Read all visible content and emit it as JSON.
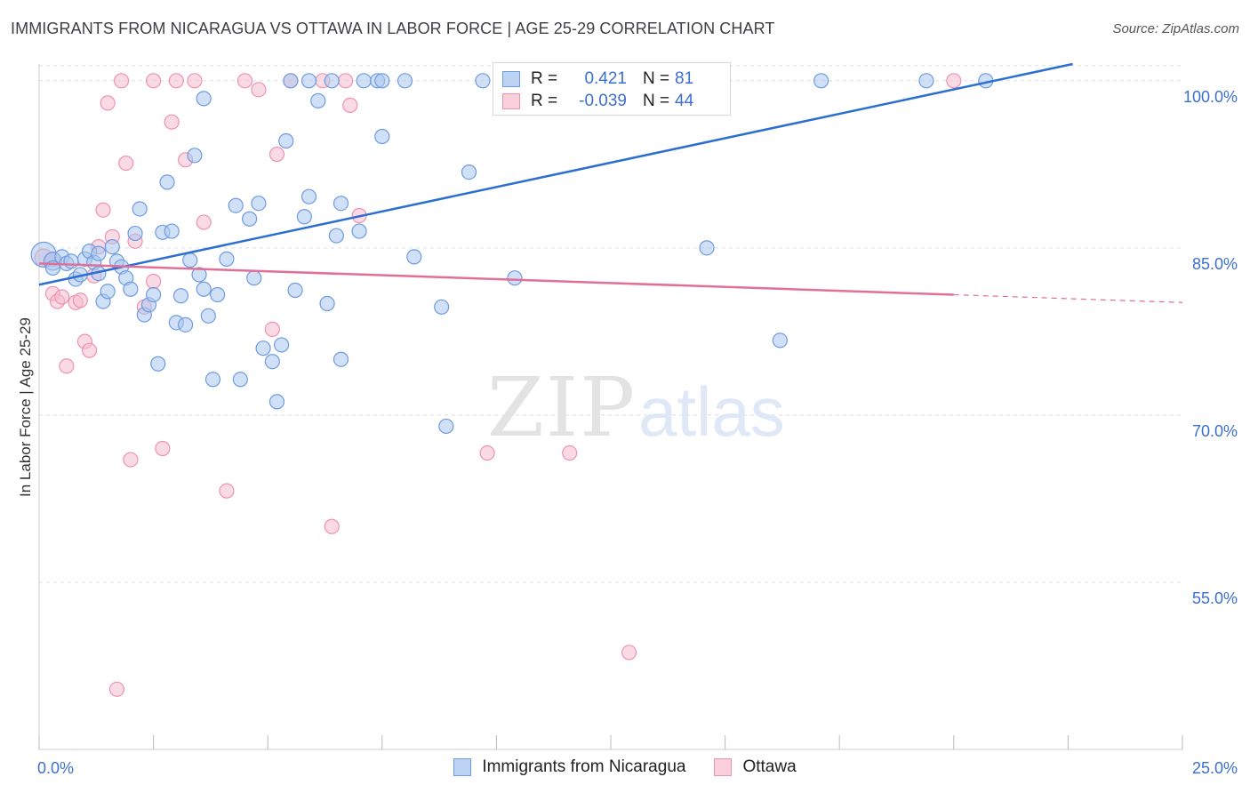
{
  "title": "IMMIGRANTS FROM NICARAGUA VS OTTAWA IN LABOR FORCE | AGE 25-29 CORRELATION CHART",
  "source": "Source: ZipAtlas.com",
  "watermark": {
    "zip": "ZIP",
    "atlas": "atlas"
  },
  "colors": {
    "blue_fill": "#a9c6ef",
    "blue_stroke": "#6f9be0",
    "blue_line": "#2d6fd0",
    "pink_fill": "#f6bccd",
    "pink_stroke": "#ee93ae",
    "pink_line": "#e0709a",
    "axis_label": "#3b6fd0",
    "grid": "#dddddd"
  },
  "legend": {
    "blue": {
      "r_label": "R =",
      "r_value": "0.421",
      "n_label": "N =",
      "n_value": "81"
    },
    "pink": {
      "r_label": "R =",
      "r_value": "-0.039",
      "n_label": "N =",
      "n_value": "44"
    }
  },
  "series_names": {
    "blue": "Immigrants from Nicaragua",
    "pink": "Ottawa"
  },
  "chart_data": {
    "type": "scatter",
    "title": "IMMIGRANTS FROM NICARAGUA VS OTTAWA IN LABOR FORCE | AGE 25-29 CORRELATION CHART",
    "xlabel": "",
    "ylabel": "In Labor Force | Age 25-29",
    "xlim": [
      0,
      25
    ],
    "ylim": [
      40,
      101.5
    ],
    "x_tick_labels": [
      {
        "value": 0,
        "label": "0.0%"
      },
      {
        "value": 25,
        "label": "25.0%"
      }
    ],
    "y_tick_labels": [
      {
        "value": 100,
        "label": "100.0%"
      },
      {
        "value": 85,
        "label": "85.0%"
      },
      {
        "value": 70,
        "label": "70.0%"
      },
      {
        "value": 55,
        "label": "55.0%"
      }
    ],
    "legend_position": "top-center",
    "grid": true,
    "series": [
      {
        "name": "Immigrants from Nicaragua",
        "color": "#6f9be0",
        "trend": {
          "x": [
            0,
            22.6
          ],
          "y": [
            81.7,
            101.5
          ]
        },
        "points": [
          [
            0.1,
            84.4,
            14
          ],
          [
            0.3,
            83.8,
            10
          ],
          [
            0.3,
            83.2,
            8
          ],
          [
            0.5,
            84.2,
            8
          ],
          [
            0.6,
            83.6,
            8
          ],
          [
            0.7,
            83.8,
            8
          ],
          [
            0.8,
            82.2,
            8
          ],
          [
            0.9,
            82.6,
            8
          ],
          [
            1.0,
            84.0,
            8
          ],
          [
            1.1,
            84.7,
            8
          ],
          [
            1.2,
            83.7,
            8
          ],
          [
            1.3,
            82.7,
            8
          ],
          [
            1.3,
            84.5,
            8
          ],
          [
            1.4,
            80.2,
            8
          ],
          [
            1.5,
            81.1,
            8
          ],
          [
            1.6,
            85.1,
            8
          ],
          [
            1.7,
            83.8,
            8
          ],
          [
            1.8,
            83.3,
            8
          ],
          [
            1.9,
            82.3,
            8
          ],
          [
            2.0,
            81.3,
            8
          ],
          [
            2.1,
            86.3,
            8
          ],
          [
            2.2,
            88.5,
            8
          ],
          [
            2.3,
            79.0,
            8
          ],
          [
            2.4,
            79.9,
            8
          ],
          [
            2.5,
            80.8,
            8
          ],
          [
            2.6,
            74.6,
            8
          ],
          [
            2.7,
            86.4,
            8
          ],
          [
            2.8,
            90.9,
            8
          ],
          [
            2.9,
            86.5,
            8
          ],
          [
            3.0,
            78.3,
            8
          ],
          [
            3.1,
            80.7,
            8
          ],
          [
            3.2,
            78.1,
            8
          ],
          [
            3.3,
            83.9,
            8
          ],
          [
            3.4,
            93.3,
            8
          ],
          [
            3.5,
            82.6,
            8
          ],
          [
            3.6,
            81.3,
            8
          ],
          [
            3.7,
            78.9,
            8
          ],
          [
            3.8,
            73.2,
            8
          ],
          [
            3.9,
            80.8,
            8
          ],
          [
            4.1,
            84.0,
            8
          ],
          [
            4.3,
            88.8,
            8
          ],
          [
            4.4,
            73.2,
            8
          ],
          [
            4.6,
            87.6,
            8
          ],
          [
            4.7,
            82.3,
            8
          ],
          [
            4.8,
            89.0,
            8
          ],
          [
            4.9,
            76.0,
            8
          ],
          [
            5.1,
            74.8,
            8
          ],
          [
            5.2,
            71.2,
            8
          ],
          [
            5.3,
            76.3,
            8
          ],
          [
            5.4,
            94.6,
            8
          ],
          [
            5.6,
            81.2,
            8
          ],
          [
            5.8,
            87.8,
            8
          ],
          [
            5.9,
            89.6,
            8
          ],
          [
            6.1,
            98.2,
            8
          ],
          [
            6.3,
            80.0,
            8
          ],
          [
            6.5,
            86.1,
            8
          ],
          [
            6.6,
            75.0,
            8
          ],
          [
            6.6,
            89.0,
            8
          ],
          [
            7.0,
            86.5,
            8
          ],
          [
            7.5,
            95.0,
            8
          ],
          [
            8.2,
            84.2,
            8
          ],
          [
            8.8,
            79.7,
            8
          ],
          [
            8.9,
            69.0,
            8
          ],
          [
            9.4,
            91.8,
            8
          ],
          [
            10.4,
            82.3,
            8
          ],
          [
            11.3,
            100.0,
            8
          ],
          [
            14.6,
            85.0,
            8
          ],
          [
            16.2,
            76.7,
            8
          ],
          [
            3.6,
            98.4,
            8
          ],
          [
            5.5,
            100.0,
            8
          ],
          [
            6.4,
            100.0,
            8
          ],
          [
            7.1,
            100.0,
            8
          ],
          [
            7.4,
            100.0,
            8
          ],
          [
            8.0,
            100.0,
            8
          ],
          [
            9.7,
            100.0,
            8
          ],
          [
            10.6,
            100.0,
            8
          ],
          [
            17.1,
            100.0,
            8
          ],
          [
            19.4,
            100.0,
            8
          ],
          [
            20.7,
            100.0,
            8
          ],
          [
            7.5,
            100.0,
            8
          ],
          [
            5.9,
            100.0,
            8
          ]
        ]
      },
      {
        "name": "Ottawa",
        "color": "#ee93ae",
        "trend": {
          "x": [
            0,
            20
          ],
          "y": [
            83.6,
            80.8
          ]
        },
        "trend_dashed": {
          "x": [
            20,
            25
          ],
          "y": [
            80.8,
            80.1
          ]
        },
        "points": [
          [
            0.1,
            84.1,
            10
          ],
          [
            0.3,
            84.0,
            8
          ],
          [
            0.3,
            80.9,
            8
          ],
          [
            0.4,
            80.2,
            8
          ],
          [
            0.5,
            80.6,
            8
          ],
          [
            0.6,
            74.4,
            8
          ],
          [
            0.8,
            80.1,
            8
          ],
          [
            0.9,
            80.3,
            8
          ],
          [
            1.0,
            76.6,
            8
          ],
          [
            1.1,
            75.8,
            8
          ],
          [
            1.2,
            82.5,
            8
          ],
          [
            1.3,
            85.1,
            8
          ],
          [
            1.4,
            88.4,
            8
          ],
          [
            1.5,
            98.0,
            8
          ],
          [
            1.6,
            86.0,
            8
          ],
          [
            1.8,
            100.0,
            8
          ],
          [
            1.9,
            92.6,
            8
          ],
          [
            2.0,
            66.0,
            8
          ],
          [
            2.1,
            85.6,
            8
          ],
          [
            2.3,
            79.7,
            8
          ],
          [
            2.5,
            100.0,
            8
          ],
          [
            2.5,
            82.0,
            8
          ],
          [
            2.7,
            67.0,
            8
          ],
          [
            2.9,
            96.3,
            8
          ],
          [
            3.2,
            92.9,
            8
          ],
          [
            3.4,
            100.0,
            8
          ],
          [
            3.6,
            87.3,
            8
          ],
          [
            4.1,
            63.2,
            8
          ],
          [
            4.5,
            100.0,
            8
          ],
          [
            4.8,
            99.2,
            8
          ],
          [
            5.1,
            77.7,
            8
          ],
          [
            5.2,
            93.4,
            8
          ],
          [
            5.5,
            100.0,
            8
          ],
          [
            6.2,
            100.0,
            8
          ],
          [
            6.4,
            60.0,
            8
          ],
          [
            6.8,
            97.8,
            8
          ],
          [
            7.0,
            87.9,
            8
          ],
          [
            9.8,
            66.6,
            8
          ],
          [
            11.6,
            66.6,
            8
          ],
          [
            12.9,
            48.7,
            8
          ],
          [
            1.7,
            45.4,
            8
          ],
          [
            3.0,
            100.0,
            8
          ],
          [
            20.0,
            100.0,
            8
          ],
          [
            6.7,
            100.0,
            8
          ]
        ]
      }
    ]
  }
}
